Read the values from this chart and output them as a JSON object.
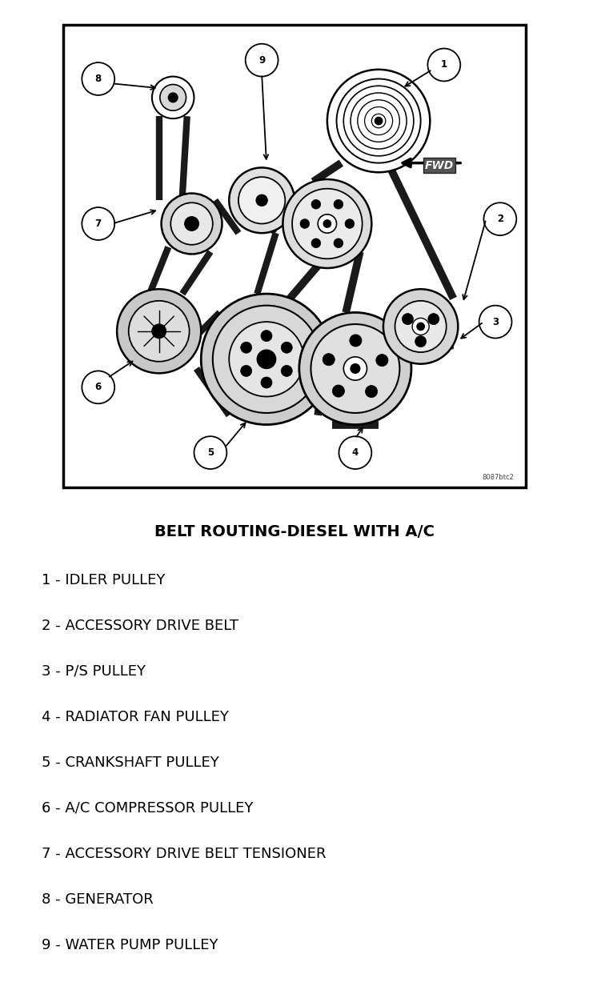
{
  "title": "BELT ROUTING-DIESEL WITH A/C",
  "legend_items": [
    "1 - IDLER PULLEY",
    "2 - ACCESSORY DRIVE BELT",
    "3 - P/S PULLEY",
    "4 - RADIATOR FAN PULLEY",
    "5 - CRANKSHAFT PULLEY",
    "6 - A/C COMPRESSOR PULLEY",
    "7 - ACCESSORY DRIVE BELT TENSIONER",
    "8 - GENERATOR",
    "9 - WATER PUMP PULLEY"
  ],
  "bg_color": "#ffffff",
  "text_color": "#000000",
  "title_fontsize": 14,
  "legend_fontsize": 13,
  "watermark": "8087btc2",
  "fwd_label": "FWD",
  "diagram_border_lw": 2.0
}
